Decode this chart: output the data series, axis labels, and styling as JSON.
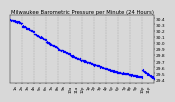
{
  "title": "Milwaukee Barometric Pressure per Minute (24 Hours)",
  "title_fontsize": 3.8,
  "dot_color": "blue",
  "dot_size": 0.8,
  "background_color": "#d8d8d8",
  "plot_bg": "#d8d8d8",
  "grid_color": "#aaaaaa",
  "ylim": [
    29.35,
    30.45
  ],
  "xlim": [
    0,
    1440
  ],
  "ylabel_fontsize": 3.2,
  "xlabel_fontsize": 2.8,
  "ytick_values": [
    29.4,
    29.5,
    29.6,
    29.7,
    29.8,
    29.9,
    30.0,
    30.1,
    30.2,
    30.3,
    30.4
  ],
  "vgrid_positions": [
    120,
    240,
    360,
    480,
    600,
    720,
    840,
    960,
    1080,
    1200,
    1320
  ],
  "xtick_positions": [
    60,
    120,
    180,
    240,
    300,
    360,
    420,
    480,
    540,
    600,
    660,
    720,
    780,
    840,
    900,
    960,
    1020,
    1080,
    1140,
    1200,
    1260,
    1320,
    1380
  ],
  "xtick_labels": [
    "1a",
    "2a",
    "3a",
    "4a",
    "5a",
    "6a",
    "7a",
    "8a",
    "9a",
    "10a",
    "11a",
    "12p",
    "1p",
    "2p",
    "3p",
    "4p",
    "5p",
    "6p",
    "7p",
    "8p",
    "9p",
    "10p",
    "11p"
  ],
  "segments": [
    {
      "x_start": 0,
      "x_end": 120,
      "y_start": 30.38,
      "y_end": 30.32
    },
    {
      "x_start": 120,
      "x_end": 240,
      "y_start": 30.28,
      "y_end": 30.18
    },
    {
      "x_start": 240,
      "x_end": 360,
      "y_start": 30.15,
      "y_end": 30.05
    },
    {
      "x_start": 360,
      "x_end": 480,
      "y_start": 30.02,
      "y_end": 29.92
    },
    {
      "x_start": 480,
      "x_end": 600,
      "y_start": 29.9,
      "y_end": 29.82
    },
    {
      "x_start": 600,
      "x_end": 720,
      "y_start": 29.8,
      "y_end": 29.72
    },
    {
      "x_start": 720,
      "x_end": 840,
      "y_start": 29.72,
      "y_end": 29.65
    },
    {
      "x_start": 840,
      "x_end": 960,
      "y_start": 29.65,
      "y_end": 29.58
    },
    {
      "x_start": 960,
      "x_end": 1080,
      "y_start": 29.58,
      "y_end": 29.52
    },
    {
      "x_start": 1080,
      "x_end": 1200,
      "y_start": 29.52,
      "y_end": 29.48
    },
    {
      "x_start": 1200,
      "x_end": 1320,
      "y_start": 29.48,
      "y_end": 29.44
    },
    {
      "x_start": 1320,
      "x_end": 1440,
      "y_start": 29.56,
      "y_end": 29.42
    }
  ]
}
